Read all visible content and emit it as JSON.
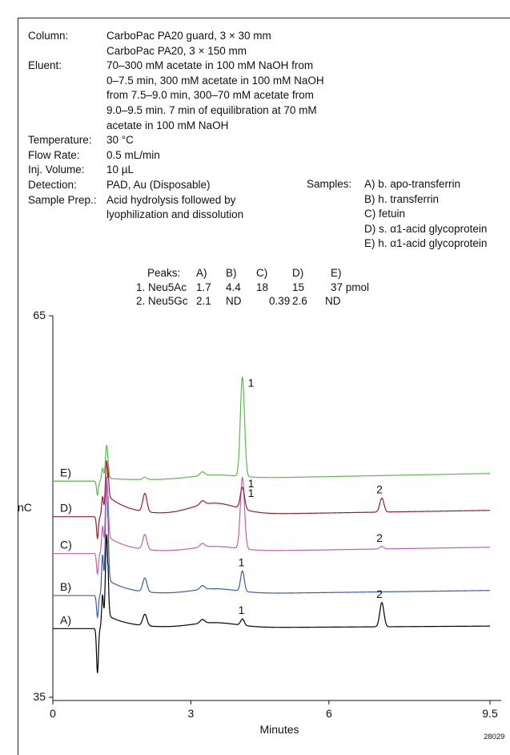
{
  "conditions": [
    {
      "label": "Column:",
      "lines": [
        "CarboPac PA20 guard, 3 × 30 mm",
        "CarboPac PA20, 3 × 150 mm"
      ]
    },
    {
      "label": "Eluent:",
      "lines": [
        "70–300 mM acetate in 100 mM NaOH from",
        "0–7.5 min, 300 mM acetate in 100 mM NaOH",
        "from 7.5–9.0 min, 300–70 mM acetate from",
        "9.0–9.5 min. 7 min of equilibration at 70 mM",
        "acetate in 100 mM NaOH"
      ]
    },
    {
      "label": "Temperature:",
      "lines": [
        "30 °C"
      ]
    },
    {
      "label": "Flow Rate:",
      "lines": [
        "0.5 mL/min"
      ]
    },
    {
      "label": "Inj. Volume:",
      "lines": [
        "10 µL"
      ]
    },
    {
      "label": "Detection:",
      "lines": [
        "PAD, Au (Disposable)"
      ]
    },
    {
      "label": "Sample Prep.:",
      "lines": [
        "Acid hydrolysis followed by",
        "lyophilization and dissolution"
      ]
    }
  ],
  "samples": {
    "label": "Samples:",
    "items": [
      "A) b. apo-transferrin",
      "B) h. transferrin",
      "C) fetuin",
      "D) s. α1-acid glycoprotein",
      "E) h. α1-acid glycoprotein"
    ]
  },
  "peaks_table": {
    "header": [
      "Peaks:",
      "A)",
      "B)",
      "C)",
      "D)",
      "E)"
    ],
    "rows": [
      [
        "1. Neu5Ac",
        "1.7",
        "4.4",
        "18",
        "15",
        "37 pmol"
      ],
      [
        "2. Neu5Gc",
        "2.1",
        "ND",
        "0.39",
        "2.6",
        "ND"
      ]
    ]
  },
  "chart_data": {
    "type": "line",
    "xlabel": "Minutes",
    "ylabel": "nC",
    "xlim": [
      0,
      9.5
    ],
    "ylim": [
      35,
      65
    ],
    "x_ticks": [
      "0",
      "3",
      "6",
      "9.5"
    ],
    "x_tick_values": [
      0,
      3,
      6,
      9.5
    ],
    "y_ticks": [
      "65",
      "35"
    ],
    "y_tick_values": [
      65,
      35
    ],
    "figure_id": "28029",
    "series": [
      {
        "name": "A)",
        "color": "#000000",
        "baseline": 40.4,
        "baseline_end": 40.6,
        "dip": -3.5,
        "spike": 7.4,
        "tail": 1.0,
        "hump": 0.4,
        "big_peak": 0.0,
        "small_peak": 0.5,
        "peak2": 1.9,
        "labels": [
          {
            "text": "1",
            "x": 4.1
          },
          {
            "text": "2",
            "x": 7.1
          }
        ]
      },
      {
        "name": "B)",
        "color": "#3b5bac",
        "baseline": 43.0,
        "baseline_end": 43.4,
        "dip": -1.7,
        "spike": 9.0,
        "tail": 1.2,
        "hump": 0.4,
        "big_peak": 0.0,
        "small_peak": 1.6,
        "peak2": 0.0,
        "labels": [
          {
            "text": "1",
            "x": 4.1
          }
        ]
      },
      {
        "name": "C)",
        "color": "#c75cb3",
        "baseline": 46.3,
        "baseline_end": 46.8,
        "dip": -1.6,
        "spike": 6.0,
        "tail": 1.3,
        "hump": 0.4,
        "big_peak": 5.6,
        "small_peak": 0.0,
        "peak2": 0.2,
        "labels": [
          {
            "text": "1",
            "x": 4.1
          },
          {
            "text": "2",
            "x": 7.1
          }
        ]
      },
      {
        "name": "D)",
        "color": "#9a1d2a",
        "baseline": 49.2,
        "baseline_end": 49.7,
        "dip": -1.7,
        "spike": 4.4,
        "tail": 1.6,
        "hump": 0.9,
        "big_peak": 1.7,
        "small_peak": 0.0,
        "peak2": 1.1,
        "labels": [
          {
            "text": "1",
            "x": 4.1
          },
          {
            "text": "2",
            "x": 7.1
          }
        ]
      },
      {
        "name": "E)",
        "color": "#5cba47",
        "baseline": 52.0,
        "baseline_end": 52.6,
        "dip": -1.1,
        "spike": 2.8,
        "tail": 0.2,
        "hump": 0.3,
        "big_peak": 7.8,
        "small_peak": 0.0,
        "peak2": 0.0,
        "labels": [
          {
            "text": "1",
            "x": 4.1
          }
        ]
      }
    ]
  }
}
